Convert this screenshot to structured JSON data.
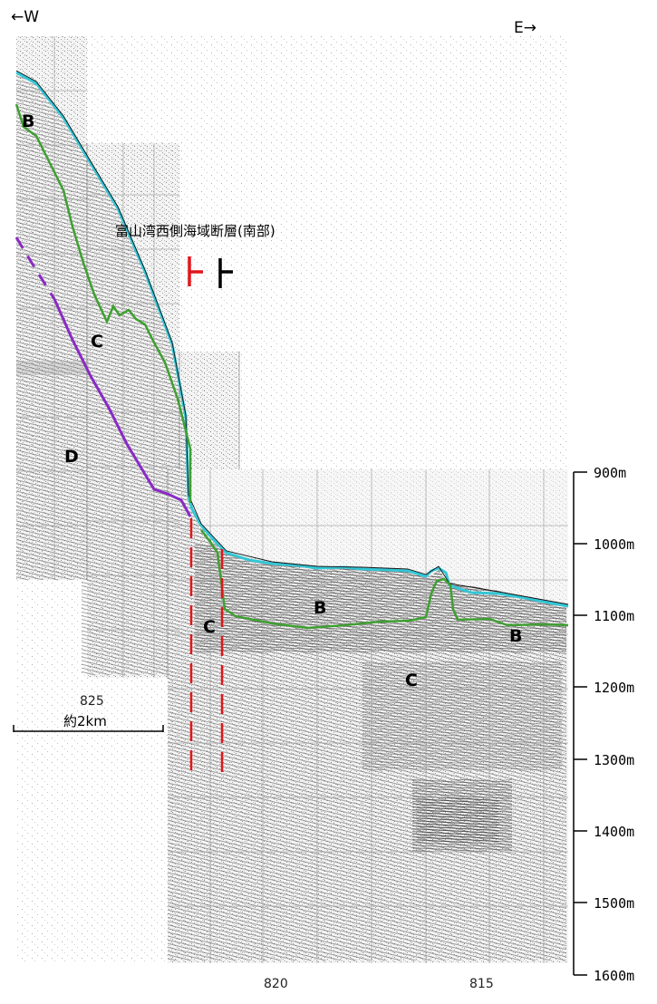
{
  "directions": {
    "west": "←W",
    "east": "E→"
  },
  "title": "富山湾西側海域断層(南部)",
  "scale_bar_label": "約2km",
  "depth_ticks": [
    "900m",
    "1000m",
    "1100m",
    "1200m",
    "1300m",
    "1400m",
    "1500m",
    "1600m"
  ],
  "shotpoint_labels": [
    "825",
    "820",
    "815"
  ],
  "layer_labels": {
    "b_upper": "B",
    "c_upper": "C",
    "d": "D",
    "b_mid": "B",
    "c_fault": "C",
    "b_right": "B",
    "c_lower": "C"
  },
  "colors": {
    "seafloor": "#33c7d6",
    "b_base": "#3f9f32",
    "c_base": "#8a2bc4",
    "fault": "#e0161b",
    "symbol_black": "#000000"
  }
}
